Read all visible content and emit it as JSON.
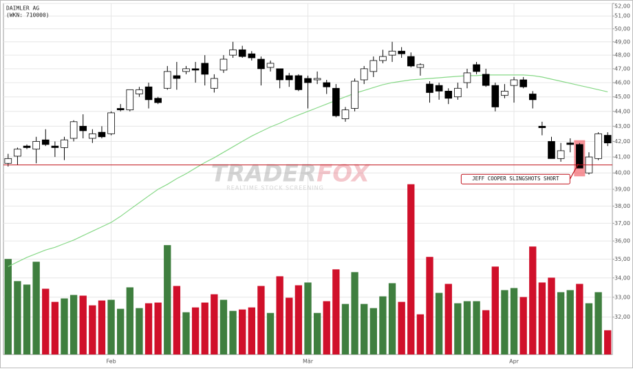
{
  "chart_data": {
    "type": "candlestick",
    "title": "DAIMLER AG",
    "subtitle": "(WKN: 710000)",
    "log_scale": true,
    "grid": true,
    "ylim": [
      30.2,
      52
    ],
    "yticks": [
      {
        "value": 32,
        "label": "32,00"
      },
      {
        "value": 33,
        "label": "33,00"
      },
      {
        "value": 34,
        "label": "34,00"
      },
      {
        "value": 35,
        "label": "35,00"
      },
      {
        "value": 36,
        "label": "36,00"
      },
      {
        "value": 37,
        "label": "37,00"
      },
      {
        "value": 38,
        "label": "38,00"
      },
      {
        "value": 39,
        "label": "39,00"
      },
      {
        "value": 40,
        "label": "40,00"
      },
      {
        "value": 41,
        "label": "41,00"
      },
      {
        "value": 42,
        "label": "42,00"
      },
      {
        "value": 43,
        "label": "43,00"
      },
      {
        "value": 44,
        "label": "44,00"
      },
      {
        "value": 45,
        "label": "45,00"
      },
      {
        "value": 46,
        "label": "46,00"
      },
      {
        "value": 47,
        "label": "47,00"
      },
      {
        "value": 48,
        "label": "48,00"
      },
      {
        "value": 49,
        "label": "49,00"
      },
      {
        "value": 50,
        "label": "50,00"
      },
      {
        "value": 51,
        "label": "51,00"
      },
      {
        "value": 52,
        "label": "52,00"
      }
    ],
    "categories": [
      null,
      null,
      null,
      null,
      null,
      null,
      null,
      null,
      null,
      null,
      null,
      "Feb",
      null,
      null,
      null,
      null,
      null,
      null,
      null,
      null,
      null,
      null,
      null,
      null,
      null,
      null,
      null,
      null,
      null,
      null,
      null,
      null,
      "Mär",
      null,
      null,
      null,
      null,
      null,
      null,
      null,
      null,
      null,
      null,
      null,
      null,
      null,
      null,
      null,
      null,
      null,
      null,
      null,
      null,
      null,
      "Apr",
      null,
      null,
      null,
      null,
      null,
      null,
      null,
      null,
      null,
      null
    ],
    "up_color": "#ffffff",
    "down_color": "#000000",
    "open": [
      40.6,
      41.05,
      41.7,
      41.5,
      42.1,
      41.7,
      41.6,
      42.2,
      43.0,
      42.2,
      42.6,
      42.5,
      44.2,
      44.1,
      45.2,
      45.7,
      44.9,
      45.6,
      46.5,
      46.8,
      47.0,
      47.4,
      45.6,
      46.9,
      48.0,
      48.4,
      48.1,
      47.7,
      47.1,
      47.0,
      46.5,
      46.5,
      46.3,
      46.2,
      46.0,
      45.6,
      43.5,
      44.2,
      46.2,
      46.8,
      47.6,
      48.0,
      48.3,
      47.9,
      47.1,
      45.9,
      45.8,
      45.4,
      45.0,
      46.0,
      47.3,
      46.6,
      45.8,
      45.1,
      45.8,
      46.2,
      45.2,
      43.0,
      42.0,
      40.9,
      41.9,
      41.8,
      40.0,
      40.9,
      42.4
    ],
    "high": [
      41.2,
      41.6,
      41.8,
      42.3,
      42.8,
      42.0,
      42.3,
      43.4,
      43.8,
      42.8,
      43.0,
      44.0,
      44.5,
      45.5,
      45.7,
      46.0,
      45.0,
      47.2,
      47.5,
      47.2,
      47.5,
      48.0,
      46.6,
      48.0,
      49.0,
      48.7,
      48.3,
      47.9,
      47.6,
      47.0,
      46.7,
      46.6,
      46.5,
      46.8,
      46.2,
      45.9,
      44.3,
      46.3,
      47.2,
      47.9,
      48.4,
      49.0,
      48.6,
      48.2,
      47.4,
      46.1,
      46.0,
      45.6,
      46.0,
      47.0,
      47.5,
      47.0,
      46.0,
      45.9,
      46.4,
      46.4,
      45.4,
      43.3,
      42.3,
      41.9,
      42.2,
      41.9,
      41.3,
      42.6,
      42.6
    ],
    "low": [
      40.4,
      40.5,
      41.5,
      40.6,
      41.7,
      41.0,
      40.8,
      42.0,
      42.2,
      41.9,
      42.2,
      42.4,
      44.0,
      44.0,
      45.0,
      44.2,
      44.5,
      45.5,
      45.5,
      46.6,
      46.0,
      45.8,
      45.3,
      46.7,
      47.8,
      47.8,
      47.6,
      45.8,
      46.8,
      45.6,
      45.7,
      45.4,
      44.2,
      45.9,
      45.2,
      43.6,
      43.3,
      44.0,
      45.9,
      46.4,
      47.4,
      47.5,
      47.8,
      47.1,
      46.5,
      44.6,
      44.8,
      44.5,
      44.8,
      45.6,
      46.6,
      45.7,
      44.0,
      44.9,
      44.6,
      45.6,
      44.2,
      42.4,
      40.9,
      40.7,
      41.3,
      40.3,
      39.9,
      40.8,
      41.7
    ],
    "close": [
      40.9,
      41.5,
      41.6,
      42.0,
      41.8,
      41.6,
      42.1,
      43.3,
      42.7,
      42.5,
      42.3,
      43.9,
      44.1,
      45.5,
      45.5,
      44.8,
      44.6,
      46.8,
      46.3,
      47.0,
      46.9,
      46.6,
      46.3,
      47.7,
      48.4,
      47.9,
      47.8,
      47.0,
      47.4,
      46.2,
      46.2,
      45.5,
      46.0,
      46.3,
      45.7,
      43.7,
      44.1,
      46.1,
      47.0,
      47.6,
      47.9,
      48.3,
      48.1,
      47.2,
      47.3,
      45.3,
      45.4,
      44.9,
      45.6,
      46.7,
      46.8,
      45.8,
      44.3,
      45.4,
      46.2,
      45.7,
      44.8,
      42.9,
      40.9,
      41.4,
      41.8,
      40.3,
      41.0,
      42.5,
      41.9
    ],
    "ma": {
      "color": "#86d886",
      "values": [
        34.6,
        34.85,
        35.1,
        35.3,
        35.5,
        35.65,
        35.85,
        36.05,
        36.3,
        36.55,
        36.8,
        37.05,
        37.4,
        37.8,
        38.2,
        38.6,
        39.0,
        39.3,
        39.65,
        39.95,
        40.3,
        40.65,
        40.95,
        41.3,
        41.65,
        42.0,
        42.35,
        42.65,
        42.95,
        43.2,
        43.5,
        43.75,
        44.0,
        44.25,
        44.5,
        44.75,
        45.0,
        45.25,
        45.45,
        45.65,
        45.85,
        46.0,
        46.1,
        46.2,
        46.25,
        46.3,
        46.35,
        46.4,
        46.45,
        46.5,
        46.5,
        46.55,
        46.55,
        46.55,
        46.55,
        46.55,
        46.5,
        46.4,
        46.25,
        46.1,
        45.95,
        45.8,
        45.65,
        45.5,
        45.35
      ]
    },
    "volume": {
      "values": [
        138,
        106,
        101,
        134,
        95,
        76,
        81,
        86,
        85,
        71,
        78,
        79,
        66,
        97,
        67,
        74,
        75,
        158,
        99,
        61,
        68,
        75,
        87,
        79,
        63,
        65,
        68,
        99,
        60,
        113,
        82,
        100,
        104,
        60,
        77,
        123,
        73,
        119,
        73,
        67,
        84,
        103,
        76,
        246,
        58,
        141,
        89,
        102,
        74,
        77,
        77,
        64,
        127,
        93,
        96,
        83,
        156,
        104,
        111,
        90,
        93,
        102,
        74,
        90,
        35
      ],
      "colors": [
        "#3f7f3f",
        "#3f7f3f",
        "#3f7f3f",
        "#3f7f3f",
        "#d0102a",
        "#d0102a",
        "#3f7f3f",
        "#3f7f3f",
        "#d0102a",
        "#d0102a",
        "#d0102a",
        "#3f7f3f",
        "#3f7f3f",
        "#3f7f3f",
        "#3f7f3f",
        "#d0102a",
        "#d0102a",
        "#3f7f3f",
        "#d0102a",
        "#3f7f3f",
        "#d0102a",
        "#d0102a",
        "#d0102a",
        "#3f7f3f",
        "#3f7f3f",
        "#d0102a",
        "#d0102a",
        "#d0102a",
        "#3f7f3f",
        "#d0102a",
        "#d0102a",
        "#d0102a",
        "#3f7f3f",
        "#3f7f3f",
        "#d0102a",
        "#d0102a",
        "#3f7f3f",
        "#3f7f3f",
        "#3f7f3f",
        "#3f7f3f",
        "#3f7f3f",
        "#3f7f3f",
        "#d0102a",
        "#d0102a",
        "#d0102a",
        "#d0102a",
        "#3f7f3f",
        "#d0102a",
        "#3f7f3f",
        "#3f7f3f",
        "#3f7f3f",
        "#d0102a",
        "#d0102a",
        "#3f7f3f",
        "#3f7f3f",
        "#d0102a",
        "#d0102a",
        "#d0102a",
        "#d0102a",
        "#3f7f3f",
        "#3f7f3f",
        "#d0102a",
        "#3f7f3f",
        "#3f7f3f",
        "#d0102a"
      ]
    },
    "hline": {
      "value": 40.5,
      "color": "#c0101a"
    },
    "annotation": {
      "text": "JEFF COOPER SLINGSHOTS SHORT",
      "index": 61,
      "color": "#c0101a"
    },
    "watermark": {
      "brand_left": "TRADER",
      "brand_right": "FOX",
      "tagline": "REALTIME STOCK SCREENING"
    }
  }
}
